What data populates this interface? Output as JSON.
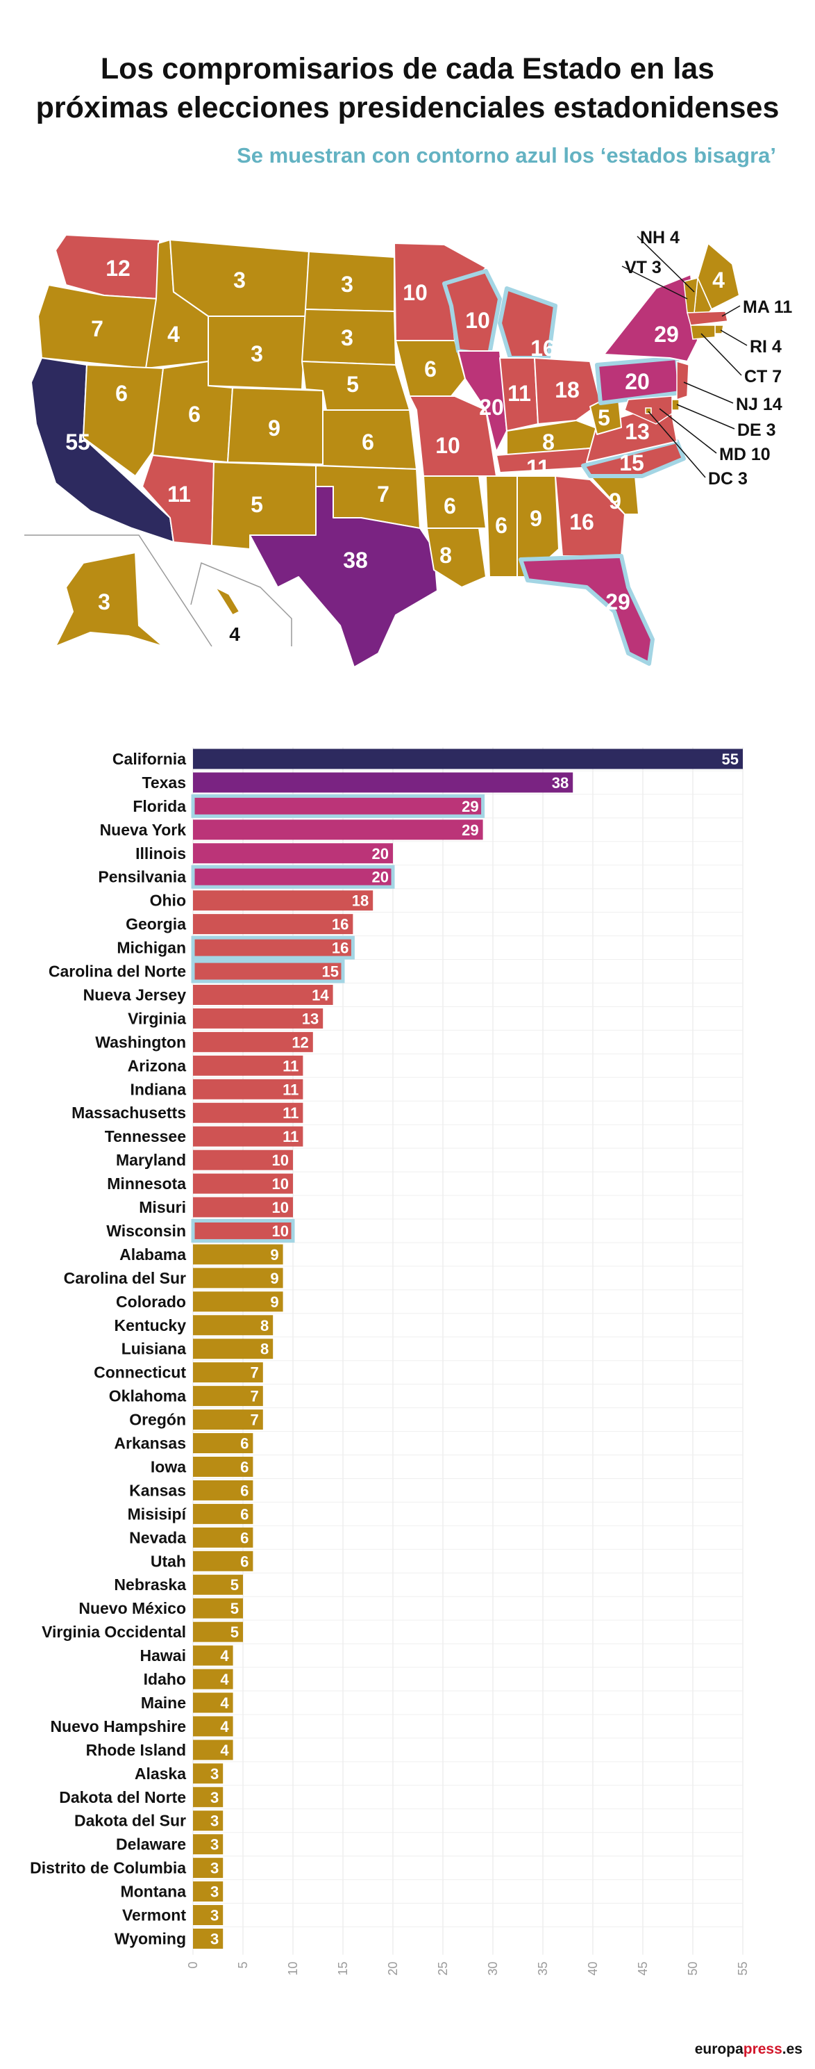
{
  "title_lines": [
    "Los compromisarios de cada Estado en las",
    "próximas elecciones presidenciales estadonidenses"
  ],
  "subtitle": "Se muestran con contorno azul los ‘estados bisagra’",
  "footer": {
    "brand_main": "europa",
    "brand_accent": "press",
    "brand_suffix": ".es"
  },
  "colors": {
    "dark": "#2d2a5f",
    "purple": "#7a2382",
    "magenta": "#bb3478",
    "red": "#cf5353",
    "gold": "#b98c14",
    "swing_outline": "#a3d5e4",
    "grid": "#e4e4e4"
  },
  "map": {
    "states": [
      {
        "code": "WA",
        "value": "12",
        "color": "red"
      },
      {
        "code": "OR",
        "value": "7",
        "color": "gold"
      },
      {
        "code": "CA",
        "value": "55",
        "color": "dark"
      },
      {
        "code": "ID",
        "value": "4",
        "color": "gold"
      },
      {
        "code": "NV",
        "value": "6",
        "color": "gold"
      },
      {
        "code": "MT",
        "value": "3",
        "color": "gold"
      },
      {
        "code": "WY",
        "value": "3",
        "color": "gold"
      },
      {
        "code": "UT",
        "value": "6",
        "color": "gold"
      },
      {
        "code": "AZ",
        "value": "11",
        "color": "red"
      },
      {
        "code": "CO",
        "value": "9",
        "color": "gold"
      },
      {
        "code": "NM",
        "value": "5",
        "color": "gold"
      },
      {
        "code": "ND",
        "value": "3",
        "color": "gold"
      },
      {
        "code": "SD",
        "value": "3",
        "color": "gold"
      },
      {
        "code": "NE",
        "value": "5",
        "color": "gold"
      },
      {
        "code": "KS",
        "value": "6",
        "color": "gold"
      },
      {
        "code": "OK",
        "value": "7",
        "color": "gold"
      },
      {
        "code": "TX",
        "value": "38",
        "color": "purple"
      },
      {
        "code": "MN",
        "value": "10",
        "color": "red"
      },
      {
        "code": "IA",
        "value": "6",
        "color": "gold"
      },
      {
        "code": "MO",
        "value": "10",
        "color": "red"
      },
      {
        "code": "AR",
        "value": "6",
        "color": "gold"
      },
      {
        "code": "LA",
        "value": "8",
        "color": "gold"
      },
      {
        "code": "WI",
        "value": "10",
        "color": "red"
      },
      {
        "code": "IL",
        "value": "20",
        "color": "magenta"
      },
      {
        "code": "MI",
        "value": "16",
        "color": "red"
      },
      {
        "code": "IN",
        "value": "11",
        "color": "red"
      },
      {
        "code": "OH",
        "value": "18",
        "color": "red"
      },
      {
        "code": "KY",
        "value": "8",
        "color": "gold"
      },
      {
        "code": "TN",
        "value": "11",
        "color": "red"
      },
      {
        "code": "MS",
        "value": "6",
        "color": "gold"
      },
      {
        "code": "AL",
        "value": "9",
        "color": "gold"
      },
      {
        "code": "GA",
        "value": "16",
        "color": "red"
      },
      {
        "code": "FL",
        "value": "29",
        "color": "magenta"
      },
      {
        "code": "SC",
        "value": "9",
        "color": "gold"
      },
      {
        "code": "NC",
        "value": "15",
        "color": "red"
      },
      {
        "code": "VA",
        "value": "13",
        "color": "red"
      },
      {
        "code": "WV",
        "value": "5",
        "color": "gold"
      },
      {
        "code": "PA",
        "value": "20",
        "color": "magenta"
      },
      {
        "code": "NY",
        "value": "29",
        "color": "magenta"
      },
      {
        "code": "ME",
        "value": "4",
        "color": "gold"
      },
      {
        "code": "AK",
        "value": "3",
        "color": "gold"
      },
      {
        "code": "HI",
        "value": "4",
        "color": "gold"
      }
    ],
    "callouts": [
      {
        "code": "NH",
        "label": "NH 4"
      },
      {
        "code": "VT",
        "label": "VT 3"
      },
      {
        "code": "MA",
        "label": "MA 11"
      },
      {
        "code": "RI",
        "label": "RI 4"
      },
      {
        "code": "CT",
        "label": "CT 7"
      },
      {
        "code": "NJ",
        "label": "NJ 14"
      },
      {
        "code": "DE",
        "label": "DE 3"
      },
      {
        "code": "MD",
        "label": "MD 10"
      },
      {
        "code": "DC",
        "label": "DC 3"
      }
    ]
  },
  "chart_data": {
    "type": "bar",
    "orientation": "horizontal",
    "xlim": [
      0,
      55
    ],
    "xticks": [
      0,
      5,
      10,
      15,
      20,
      25,
      30,
      35,
      40,
      45,
      50,
      55
    ],
    "grid": true,
    "categories": [
      "California",
      "Texas",
      "Florida",
      "Nueva York",
      "Illinois",
      "Pensilvania",
      "Ohio",
      "Georgia",
      "Michigan",
      "Carolina del Norte",
      "Nueva Jersey",
      "Virginia",
      "Washington",
      "Arizona",
      "Indiana",
      "Massachusetts",
      "Tennessee",
      "Maryland",
      "Minnesota",
      "Misuri",
      "Wisconsin",
      "Alabama",
      "Carolina del Sur",
      "Colorado",
      "Kentucky",
      "Luisiana",
      "Connecticut",
      "Oklahoma",
      "Oregón",
      "Arkansas",
      "Iowa",
      "Kansas",
      "Misisipí",
      "Nevada",
      "Utah",
      "Nebraska",
      "Nuevo México",
      "Virginia Occidental",
      "Hawai",
      "Idaho",
      "Maine",
      "Nuevo Hampshire",
      "Rhode Island",
      "Alaska",
      "Dakota del Norte",
      "Dakota del Sur",
      "Delaware",
      "Distrito de Columbia",
      "Montana",
      "Vermont",
      "Wyoming"
    ],
    "values": [
      55,
      38,
      29,
      29,
      20,
      20,
      18,
      16,
      16,
      15,
      14,
      13,
      12,
      11,
      11,
      11,
      11,
      10,
      10,
      10,
      10,
      9,
      9,
      9,
      8,
      8,
      7,
      7,
      7,
      6,
      6,
      6,
      6,
      6,
      6,
      5,
      5,
      5,
      4,
      4,
      4,
      4,
      4,
      3,
      3,
      3,
      3,
      3,
      3,
      3,
      3
    ],
    "colors": [
      "dark",
      "purple",
      "magenta",
      "magenta",
      "magenta",
      "magenta",
      "red",
      "red",
      "red",
      "red",
      "red",
      "red",
      "red",
      "red",
      "red",
      "red",
      "red",
      "red",
      "red",
      "red",
      "red",
      "gold",
      "gold",
      "gold",
      "gold",
      "gold",
      "gold",
      "gold",
      "gold",
      "gold",
      "gold",
      "gold",
      "gold",
      "gold",
      "gold",
      "gold",
      "gold",
      "gold",
      "gold",
      "gold",
      "gold",
      "gold",
      "gold",
      "gold",
      "gold",
      "gold",
      "gold",
      "gold",
      "gold",
      "gold",
      "gold"
    ],
    "swing_states": [
      "Florida",
      "Pensilvania",
      "Michigan",
      "Carolina del Norte",
      "Wisconsin"
    ]
  }
}
